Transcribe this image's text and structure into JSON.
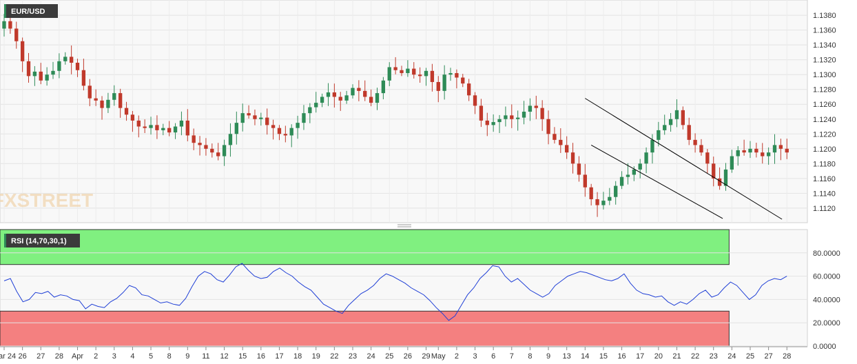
{
  "chart_data": [
    {
      "type": "candlestick",
      "symbol": "EUR/USD",
      "watermark": "FXSTREET",
      "colors": {
        "up": "#2e8b57",
        "down": "#c0392b",
        "trendline": "#000000"
      },
      "ylim": [
        1.1105,
        1.1395
      ],
      "y_ticks": [
        "1.1380",
        "1.1360",
        "1.1340",
        "1.1320",
        "1.1300",
        "1.1280",
        "1.1260",
        "1.1240",
        "1.1220",
        "1.1200",
        "1.1180",
        "1.1160",
        "1.1140",
        "1.1120"
      ],
      "x_ticks": [
        "Mar 24",
        "26",
        "27",
        "28",
        "Apr",
        "2",
        "3",
        "4",
        "5",
        "8",
        "9",
        "11",
        "12",
        "15",
        "16",
        "17",
        "18",
        "19",
        "22",
        "23",
        "24",
        "25",
        "26",
        "29",
        "May",
        "2",
        "3",
        "6",
        "7",
        "8",
        "9",
        "13",
        "14",
        "15",
        "16",
        "17",
        "20",
        "21",
        "22",
        "23",
        "24",
        "25",
        "27",
        "28"
      ],
      "x_tick_pos": [
        0,
        3,
        6,
        9,
        12,
        15,
        18,
        21,
        24,
        27,
        30,
        33,
        36,
        39,
        42,
        45,
        48,
        51,
        54,
        57,
        60,
        63,
        66,
        69,
        71,
        74,
        77,
        80,
        83,
        86,
        89,
        92,
        95,
        98,
        101,
        104,
        107,
        110,
        113,
        116,
        119,
        122,
        125,
        128
      ],
      "n_slots": 131,
      "closes": [
        1.1372,
        1.1362,
        1.1345,
        1.1318,
        1.1298,
        1.1304,
        1.1292,
        1.13,
        1.1305,
        1.1318,
        1.1324,
        1.1316,
        1.1306,
        1.1285,
        1.1268,
        1.1265,
        1.1255,
        1.1266,
        1.1275,
        1.1255,
        1.1246,
        1.1238,
        1.123,
        1.1228,
        1.1232,
        1.1225,
        1.1228,
        1.1222,
        1.123,
        1.1238,
        1.1218,
        1.1208,
        1.1205,
        1.12,
        1.1195,
        1.119,
        1.1205,
        1.122,
        1.1235,
        1.1248,
        1.1245,
        1.124,
        1.1242,
        1.1232,
        1.1228,
        1.122,
        1.1218,
        1.1228,
        1.1235,
        1.1248,
        1.1256,
        1.1262,
        1.127,
        1.1276,
        1.127,
        1.1265,
        1.1272,
        1.1282,
        1.1278,
        1.127,
        1.1262,
        1.1275,
        1.1292,
        1.131,
        1.1306,
        1.1302,
        1.1308,
        1.13,
        1.1298,
        1.1305,
        1.129,
        1.1278,
        1.13,
        1.1302,
        1.1296,
        1.1288,
        1.1272,
        1.1258,
        1.1238,
        1.1232,
        1.1236,
        1.124,
        1.1245,
        1.124,
        1.1242,
        1.125,
        1.1258,
        1.1255,
        1.124,
        1.122,
        1.1212,
        1.1205,
        1.1195,
        1.118,
        1.1165,
        1.1148,
        1.1132,
        1.1124,
        1.113,
        1.1135,
        1.115,
        1.1162,
        1.1165,
        1.1172,
        1.118,
        1.1195,
        1.1212,
        1.1225,
        1.1232,
        1.124,
        1.1252,
        1.1232,
        1.1212,
        1.1205,
        1.1195,
        1.118,
        1.116,
        1.115,
        1.1172,
        1.119,
        1.1198,
        1.1195,
        1.12,
        1.1195,
        1.119,
        1.1195,
        1.1205,
        1.12,
        1.1195,
        1.1185,
        1.118
      ],
      "extra_closes": [
        1.119,
        1.12,
        1.1212,
        1.1222,
        1.1232,
        1.1228,
        1.1238,
        1.1245,
        1.124,
        1.1238,
        1.1242,
        1.1245,
        1.1235,
        1.1238,
        1.1225,
        1.121,
        1.1208,
        1.12,
        1.121,
        1.1205,
        1.12,
        1.1192,
        1.1182,
        1.1178,
        1.1172,
        1.1168,
        1.1165,
        1.116,
        1.1162,
        1.1158,
        1.1168,
        1.1165,
        1.116,
        1.1162,
        1.1155,
        1.1148,
        1.116,
        1.117,
        1.1165,
        1.1158,
        1.1148,
        1.1135,
        1.1165,
        1.1172,
        1.1188,
        1.119,
        1.1185
      ],
      "trendlines": [
        {
          "from": [
            95.0,
            1.1268
          ],
          "to": [
            127.2,
            1.1105
          ]
        },
        {
          "from": [
            96.0,
            1.1205
          ],
          "to": [
            117.5,
            1.1106
          ]
        }
      ]
    },
    {
      "type": "line",
      "indicator": "RSI (14,70,30,1)",
      "ylim": [
        0,
        100
      ],
      "y_ticks": [
        "80.0000",
        "60.0000",
        "40.0000",
        "20.0000",
        "0.0000"
      ],
      "overbought": 70,
      "oversold": 30,
      "colors": {
        "line": "#1f3fd6",
        "overbought_zone": "#80f080",
        "oversold_zone": "#f48080"
      },
      "series": [
        {
          "values": [
            56,
            58,
            47,
            38,
            40,
            46,
            45,
            47,
            42,
            44,
            43,
            40,
            39,
            32,
            36,
            34,
            33,
            38,
            41,
            46,
            52,
            50,
            44,
            43,
            40,
            37,
            38,
            36,
            35,
            41,
            51,
            60,
            64,
            62,
            57,
            55,
            61,
            68,
            71,
            65,
            60,
            58,
            59,
            64,
            67,
            63,
            60,
            55,
            51,
            48,
            42,
            36,
            33,
            30,
            28,
            35,
            40,
            45,
            48,
            52,
            58,
            62,
            60,
            57,
            54,
            50,
            47,
            44,
            39,
            33,
            28,
            22,
            26,
            35,
            44,
            50,
            58,
            63,
            69,
            68,
            60,
            55,
            58,
            53,
            48,
            45,
            42,
            45,
            52,
            56,
            60,
            62,
            64,
            63,
            61,
            59,
            57,
            56,
            58,
            62,
            54,
            48,
            45,
            44,
            42,
            43,
            38,
            35,
            38,
            36,
            40,
            45,
            48,
            42,
            44,
            50,
            55,
            52,
            46,
            40,
            44,
            52,
            56,
            58,
            57,
            60
          ]
        }
      ]
    }
  ]
}
